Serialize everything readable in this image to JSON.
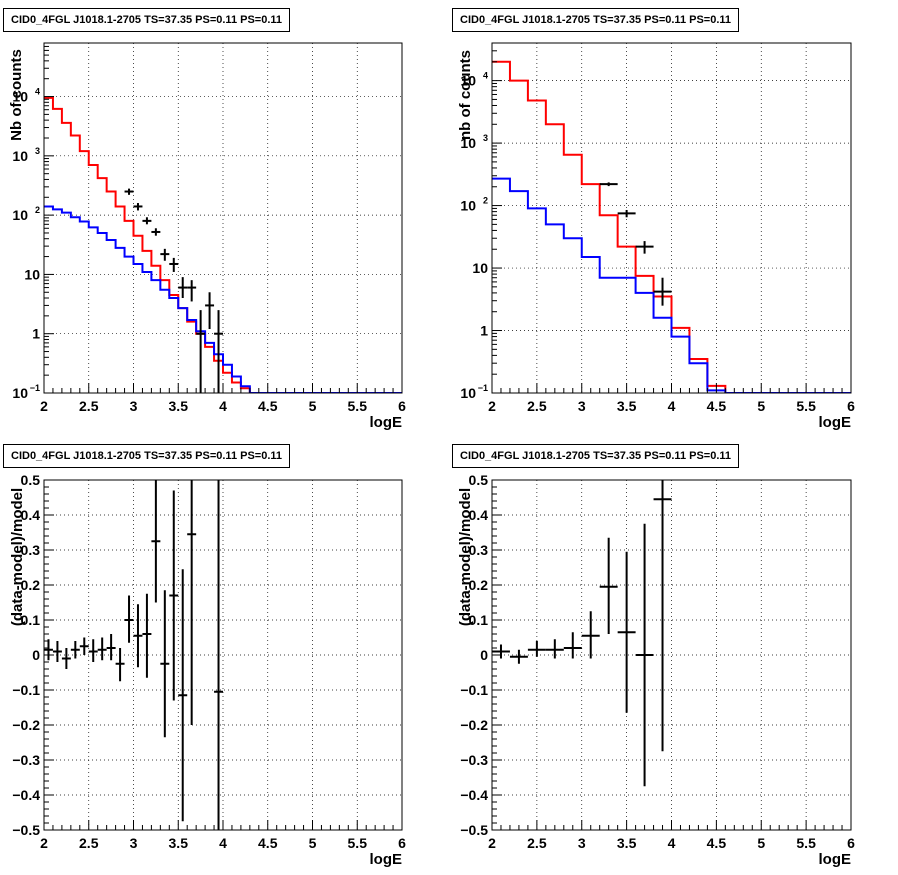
{
  "chart_data": [
    {
      "type": "histogram",
      "title": "CID0_4FGL J1018.1-2705 TS=37.35 PS=0.11 PS=0.11",
      "xlabel": "logE",
      "ylabel": "Nb of counts",
      "xlim": [
        2,
        6
      ],
      "ylim": [
        0.1,
        80000
      ],
      "yscale": "log",
      "grid": true,
      "xticks": [
        "2",
        "2.5",
        "3",
        "3.5",
        "4",
        "4.5",
        "5",
        "5.5",
        "6"
      ],
      "yticks": [
        {
          "v": 0.1,
          "label": "10",
          "sup": "−1"
        },
        {
          "v": 1,
          "label": "1"
        },
        {
          "v": 10,
          "label": "10"
        },
        {
          "v": 100,
          "label": "10",
          "sup": "2"
        },
        {
          "v": 1000,
          "label": "10",
          "sup": "3"
        },
        {
          "v": 10000,
          "label": "10",
          "sup": "4"
        }
      ],
      "bin_width": 0.1,
      "bin_edges_start": 2.0,
      "series": [
        {
          "color": "#ff0000",
          "kind": "step",
          "values": [
            9500,
            6200,
            3600,
            2200,
            1200,
            700,
            420,
            250,
            140,
            80,
            45,
            25,
            14,
            8,
            4.5,
            2.7,
            1.6,
            1.0,
            0.6,
            0.35,
            0.22,
            0.15,
            0.12,
            0.1,
            0.1,
            0.1,
            0.1,
            0.1,
            0.1,
            0.1,
            0.1,
            0.1,
            0.1,
            0.1,
            0.1,
            0.1,
            0.1,
            0.1,
            0.1,
            0.1
          ]
        },
        {
          "color": "#0000ff",
          "kind": "step",
          "values": [
            140,
            125,
            110,
            92,
            78,
            62,
            50,
            38,
            28,
            20,
            15,
            11,
            8,
            5.5,
            4,
            2.7,
            1.7,
            1.1,
            0.7,
            0.45,
            0.3,
            0.19,
            0.13,
            0.1,
            0.1,
            0.1,
            0.1,
            0.1,
            0.1,
            0.1,
            0.1,
            0.1,
            0.1,
            0.1,
            0.1,
            0.1,
            0.1,
            0.1,
            0.1,
            0.1
          ]
        },
        {
          "color": "#000000",
          "kind": "points",
          "points": [
            {
              "x": 2.95,
              "y": 250,
              "lo": 220,
              "hi": 280
            },
            {
              "x": 3.05,
              "y": 140,
              "lo": 120,
              "hi": 160
            },
            {
              "x": 3.15,
              "y": 80,
              "lo": 70,
              "hi": 92
            },
            {
              "x": 3.25,
              "y": 52,
              "lo": 45,
              "hi": 60
            },
            {
              "x": 3.35,
              "y": 22,
              "lo": 17,
              "hi": 27
            },
            {
              "x": 3.45,
              "y": 15,
              "lo": 11,
              "hi": 19
            },
            {
              "x": 3.55,
              "y": 6,
              "lo": 4,
              "hi": 9
            },
            {
              "x": 3.65,
              "y": 6,
              "lo": 3.5,
              "hi": 8
            },
            {
              "x": 3.75,
              "y": 1,
              "lo": 0.1,
              "hi": 2.5
            },
            {
              "x": 3.85,
              "y": 3,
              "lo": 1.2,
              "hi": 5
            },
            {
              "x": 3.95,
              "y": 1,
              "lo": 0.1,
              "hi": 2.5
            }
          ]
        }
      ]
    },
    {
      "type": "histogram",
      "title": "CID0_4FGL J1018.1-2705 TS=37.35 PS=0.11 PS=0.11",
      "xlabel": "logE",
      "ylabel": "nb of counts",
      "xlim": [
        2,
        6
      ],
      "ylim": [
        0.1,
        40000
      ],
      "yscale": "log",
      "grid": true,
      "xticks": [
        "2",
        "2.5",
        "3",
        "3.5",
        "4",
        "4.5",
        "5",
        "5.5",
        "6"
      ],
      "yticks": [
        {
          "v": 0.1,
          "label": "10",
          "sup": "−1"
        },
        {
          "v": 1,
          "label": "1"
        },
        {
          "v": 10,
          "label": "10"
        },
        {
          "v": 100,
          "label": "10",
          "sup": "2"
        },
        {
          "v": 1000,
          "label": "10",
          "sup": "3"
        },
        {
          "v": 10000,
          "label": "10",
          "sup": "4"
        }
      ],
      "bin_width": 0.2,
      "bin_edges_start": 2.0,
      "series": [
        {
          "color": "#ff0000",
          "kind": "step",
          "values": [
            20000,
            10000,
            4800,
            2000,
            650,
            220,
            70,
            22,
            7.5,
            3.5,
            1.1,
            0.35,
            0.13,
            0.1,
            0.1,
            0.1,
            0.1,
            0.1,
            0.1,
            0.1
          ]
        },
        {
          "color": "#0000ff",
          "kind": "step",
          "values": [
            270,
            170,
            90,
            50,
            30,
            15,
            7,
            7,
            4,
            1.6,
            0.8,
            0.3,
            0.11,
            0.1,
            0.1,
            0.1,
            0.1,
            0.1,
            0.1,
            0.1
          ]
        },
        {
          "color": "#000000",
          "kind": "points",
          "points": [
            {
              "x": 3.3,
              "y": 220,
              "lo": 205,
              "hi": 235
            },
            {
              "x": 3.5,
              "y": 75,
              "lo": 65,
              "hi": 85
            },
            {
              "x": 3.7,
              "y": 22,
              "lo": 17,
              "hi": 27
            },
            {
              "x": 3.9,
              "y": 4.2,
              "lo": 2.5,
              "hi": 7
            }
          ]
        }
      ]
    },
    {
      "type": "scatter",
      "title": "CID0_4FGL J1018.1-2705 TS=37.35 PS=0.11 PS=0.11",
      "xlabel": "logE",
      "ylabel": "(data-model)/model",
      "xlim": [
        2,
        6
      ],
      "ylim": [
        -0.5,
        0.5
      ],
      "yscale": "linear",
      "grid": true,
      "xticks": [
        "2",
        "2.5",
        "3",
        "3.5",
        "4",
        "4.5",
        "5",
        "5.5",
        "6"
      ],
      "yticks": [
        {
          "v": -0.5,
          "label": "−0.5"
        },
        {
          "v": -0.4,
          "label": "−0.4"
        },
        {
          "v": -0.3,
          "label": "−0.3"
        },
        {
          "v": -0.2,
          "label": "−0.2"
        },
        {
          "v": -0.1,
          "label": "−0.1"
        },
        {
          "v": 0,
          "label": "0"
        },
        {
          "v": 0.1,
          "label": "0.1"
        },
        {
          "v": 0.2,
          "label": "0.2"
        },
        {
          "v": 0.3,
          "label": "0.3"
        },
        {
          "v": 0.4,
          "label": "0.4"
        },
        {
          "v": 0.5,
          "label": "0.5"
        }
      ],
      "bin_width": 0.1,
      "series": [
        {
          "color": "#000000",
          "kind": "points",
          "points": [
            {
              "x": 2.05,
              "y": 0.015,
              "lo": -0.015,
              "hi": 0.045
            },
            {
              "x": 2.15,
              "y": 0.01,
              "lo": -0.02,
              "hi": 0.04
            },
            {
              "x": 2.25,
              "y": -0.01,
              "lo": -0.04,
              "hi": 0.02
            },
            {
              "x": 2.35,
              "y": 0.015,
              "lo": -0.01,
              "hi": 0.04
            },
            {
              "x": 2.45,
              "y": 0.025,
              "lo": 0.0,
              "hi": 0.05
            },
            {
              "x": 2.55,
              "y": 0.01,
              "lo": -0.02,
              "hi": 0.045
            },
            {
              "x": 2.65,
              "y": 0.015,
              "lo": -0.015,
              "hi": 0.05
            },
            {
              "x": 2.75,
              "y": 0.02,
              "lo": -0.015,
              "hi": 0.06
            },
            {
              "x": 2.85,
              "y": -0.025,
              "lo": -0.075,
              "hi": 0.02
            },
            {
              "x": 2.95,
              "y": 0.1,
              "lo": 0.035,
              "hi": 0.17
            },
            {
              "x": 3.05,
              "y": 0.055,
              "lo": -0.035,
              "hi": 0.145
            },
            {
              "x": 3.15,
              "y": 0.06,
              "lo": -0.065,
              "hi": 0.175
            },
            {
              "x": 3.25,
              "y": 0.325,
              "lo": 0.15,
              "hi": 0.5
            },
            {
              "x": 3.35,
              "y": -0.025,
              "lo": -0.235,
              "hi": 0.185
            },
            {
              "x": 3.45,
              "y": 0.17,
              "lo": -0.13,
              "hi": 0.47
            },
            {
              "x": 3.55,
              "y": -0.115,
              "lo": -0.475,
              "hi": 0.245
            },
            {
              "x": 3.65,
              "y": 0.345,
              "lo": -0.2,
              "hi": 0.5
            },
            {
              "x": 3.95,
              "y": -0.105,
              "lo": -0.5,
              "hi": 0.5
            }
          ]
        }
      ]
    },
    {
      "type": "scatter",
      "title": "CID0_4FGL J1018.1-2705 TS=37.35 PS=0.11 PS=0.11",
      "xlabel": "logE",
      "ylabel": "(data-model)/model",
      "xlim": [
        2,
        6
      ],
      "ylim": [
        -0.5,
        0.5
      ],
      "yscale": "linear",
      "grid": true,
      "xticks": [
        "2",
        "2.5",
        "3",
        "3.5",
        "4",
        "4.5",
        "5",
        "5.5",
        "6"
      ],
      "yticks": [
        {
          "v": -0.5,
          "label": "−0.5"
        },
        {
          "v": -0.4,
          "label": "−0.4"
        },
        {
          "v": -0.3,
          "label": "−0.3"
        },
        {
          "v": -0.2,
          "label": "−0.2"
        },
        {
          "v": -0.1,
          "label": "−0.1"
        },
        {
          "v": 0,
          "label": "0"
        },
        {
          "v": 0.1,
          "label": "0.1"
        },
        {
          "v": 0.2,
          "label": "0.2"
        },
        {
          "v": 0.3,
          "label": "0.3"
        },
        {
          "v": 0.4,
          "label": "0.4"
        },
        {
          "v": 0.5,
          "label": "0.5"
        }
      ],
      "bin_width": 0.2,
      "series": [
        {
          "color": "#000000",
          "kind": "points",
          "points": [
            {
              "x": 2.1,
              "y": 0.01,
              "lo": -0.01,
              "hi": 0.03
            },
            {
              "x": 2.3,
              "y": -0.005,
              "lo": -0.025,
              "hi": 0.015
            },
            {
              "x": 2.5,
              "y": 0.015,
              "lo": -0.005,
              "hi": 0.04
            },
            {
              "x": 2.7,
              "y": 0.015,
              "lo": -0.01,
              "hi": 0.045
            },
            {
              "x": 2.9,
              "y": 0.02,
              "lo": -0.01,
              "hi": 0.065
            },
            {
              "x": 3.1,
              "y": 0.055,
              "lo": -0.01,
              "hi": 0.125
            },
            {
              "x": 3.3,
              "y": 0.195,
              "lo": 0.06,
              "hi": 0.335
            },
            {
              "x": 3.5,
              "y": 0.065,
              "lo": -0.165,
              "hi": 0.295
            },
            {
              "x": 3.7,
              "y": 0.0,
              "lo": -0.375,
              "hi": 0.375
            },
            {
              "x": 3.9,
              "y": 0.445,
              "lo": -0.275,
              "hi": 0.5
            }
          ]
        }
      ]
    }
  ]
}
